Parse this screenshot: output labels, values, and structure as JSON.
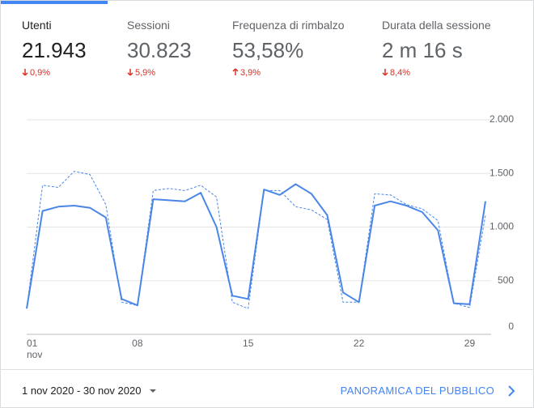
{
  "metrics": [
    {
      "label": "Utenti",
      "value": "21.943",
      "change": "0,9%",
      "direction": "down"
    },
    {
      "label": "Sessioni",
      "value": "30.823",
      "change": "5,9%",
      "direction": "down"
    },
    {
      "label": "Frequenza di rimbalzo",
      "value": "53,58%",
      "change": "3,9%",
      "direction": "up"
    },
    {
      "label": "Durata della sessione",
      "value": "2 m 16 s",
      "change": "8,4%",
      "direction": "down"
    }
  ],
  "footer": {
    "date_range": "1 nov 2020 - 30 nov 2020",
    "link": "PANORAMICA DEL PUBBLICO"
  },
  "chart_data": {
    "type": "line",
    "categories": [
      "01",
      null,
      null,
      null,
      null,
      null,
      null,
      "08",
      null,
      null,
      null,
      null,
      null,
      null,
      "15",
      null,
      null,
      null,
      null,
      null,
      null,
      "22",
      null,
      null,
      null,
      null,
      null,
      null,
      "29",
      null
    ],
    "x_sublabel": "nov",
    "series": [
      {
        "color": "#4a86e8",
        "dashed": false,
        "values": [
          240,
          1150,
          1190,
          1200,
          1180,
          1090,
          330,
          270,
          1260,
          1250,
          1240,
          1320,
          1000,
          360,
          330,
          1350,
          1300,
          1400,
          1310,
          1110,
          390,
          300,
          1200,
          1240,
          1200,
          1140,
          970,
          290,
          280,
          1240
        ]
      },
      {
        "color": "#4a86e8",
        "dashed": true,
        "values": [
          240,
          1390,
          1370,
          1520,
          1490,
          1210,
          300,
          270,
          1340,
          1360,
          1340,
          1390,
          1280,
          300,
          240,
          1340,
          1340,
          1190,
          1160,
          1070,
          300,
          300,
          1310,
          1300,
          1210,
          1170,
          1060,
          290,
          250,
          1110
        ]
      }
    ],
    "ylim": [
      0,
      2000
    ],
    "yticks": [
      0,
      500,
      {
        "value": 1000,
        "label": "1.000"
      },
      {
        "value": 1500,
        "label": "1.500"
      },
      {
        "value": 2000,
        "label": "2.000"
      }
    ],
    "grid": true
  }
}
